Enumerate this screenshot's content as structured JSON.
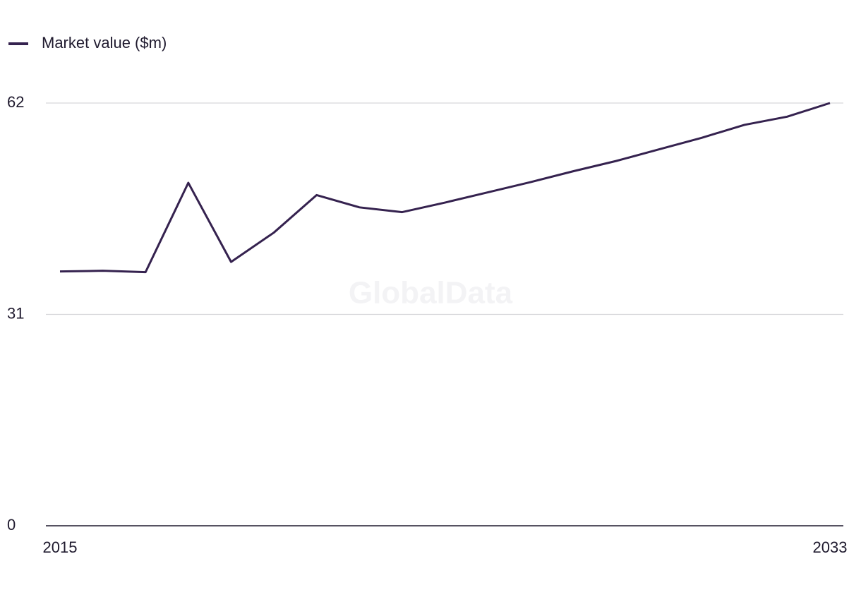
{
  "chart_data": {
    "type": "line",
    "watermark": "GlobalData",
    "x": [
      2015,
      2016,
      2017,
      2018,
      2019,
      2020,
      2021,
      2022,
      2023,
      2024,
      2025,
      2026,
      2027,
      2028,
      2029,
      2030,
      2031,
      2032,
      2033
    ],
    "series": [
      {
        "name": "Market value ($m)",
        "color": "#35224f",
        "values": [
          37.3,
          37.4,
          37.2,
          50.3,
          38.7,
          43.0,
          48.5,
          46.7,
          46.0,
          47.4,
          48.9,
          50.4,
          52.0,
          53.5,
          55.2,
          56.9,
          58.8,
          60.0,
          62.0
        ]
      }
    ],
    "xlim": [
      2015,
      2033
    ],
    "xticks": [
      2015,
      2033
    ],
    "ylim": [
      0,
      62
    ],
    "yticks": [
      0,
      31,
      62
    ],
    "grid": true,
    "legend": "top-left"
  }
}
